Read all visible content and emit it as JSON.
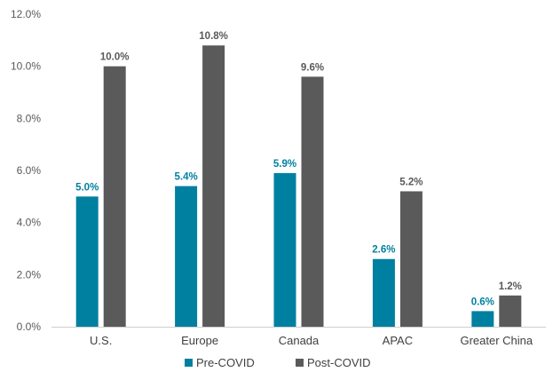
{
  "chart_data": {
    "type": "bar",
    "categories": [
      "U.S.",
      "Europe",
      "Canada",
      "APAC",
      "Greater China"
    ],
    "series": [
      {
        "name": "Pre-COVID",
        "color": "#0080A0",
        "values": [
          5.0,
          5.4,
          5.9,
          2.6,
          0.6
        ],
        "labels": [
          "5.0%",
          "5.4%",
          "5.9%",
          "2.6%",
          "0.6%"
        ]
      },
      {
        "name": "Post-COVID",
        "color": "#5A5A5A",
        "values": [
          10.0,
          10.8,
          9.6,
          5.2,
          1.2
        ],
        "labels": [
          "10.0%",
          "10.8%",
          "9.6%",
          "5.2%",
          "1.2%"
        ]
      }
    ],
    "ylim": [
      0,
      12
    ],
    "yticks": [
      0,
      2,
      4,
      6,
      8,
      10,
      12
    ],
    "ytick_labels": [
      "0.0%",
      "2.0%",
      "4.0%",
      "6.0%",
      "8.0%",
      "10.0%",
      "12.0%"
    ],
    "title": "",
    "xlabel": "",
    "ylabel": "",
    "grid": false,
    "legend": "bottom-center"
  }
}
